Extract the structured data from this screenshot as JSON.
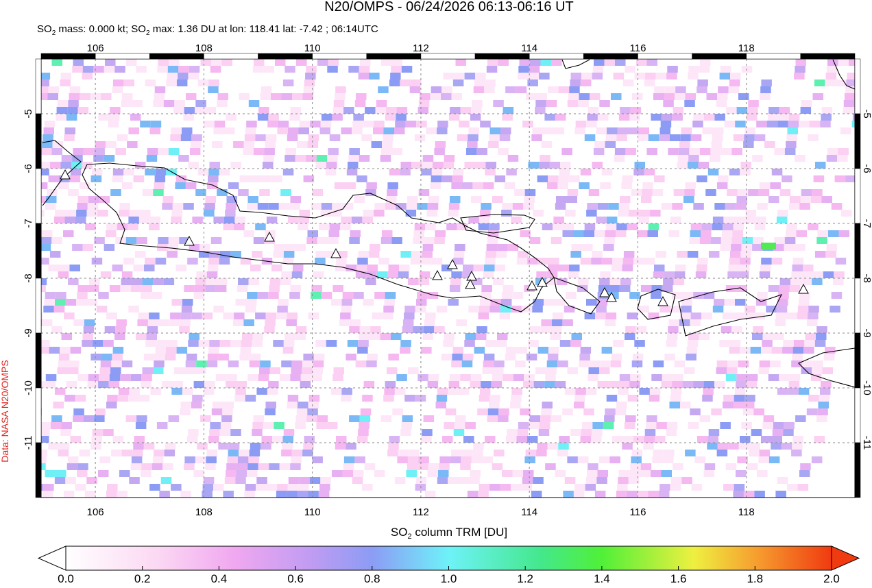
{
  "title": "N20/OMPS - 06/24/2026 06:13-06:16 UT",
  "subtitle": [
    "SO",
    "2",
    " mass: 0.000 kt; SO",
    "2",
    " max: 1.36 DU at lon: 118.41 lat: -7.42 ; 06:14UTC"
  ],
  "credit": "Data: NASA N20/OMPS",
  "map": {
    "lonlim": [
      105,
      120
    ],
    "latlim": [
      -12,
      -4
    ],
    "lonticks": [
      106,
      108,
      110,
      112,
      114,
      116,
      118
    ],
    "latticks": [
      -5,
      -6,
      -7,
      -8,
      -9,
      -10,
      -11
    ]
  },
  "colorbar": {
    "label": [
      "SO",
      "2",
      " column TRM [DU]"
    ],
    "lim": [
      0,
      2
    ],
    "ticks": [
      {
        "value": 0,
        "label": "0.0"
      },
      0.2,
      0.4,
      0.6,
      0.8,
      {
        "value": 1,
        "label": "1.0"
      },
      1.2,
      1.4,
      1.6,
      1.8,
      {
        "value": 2,
        "label": "2.0"
      }
    ]
  }
}
